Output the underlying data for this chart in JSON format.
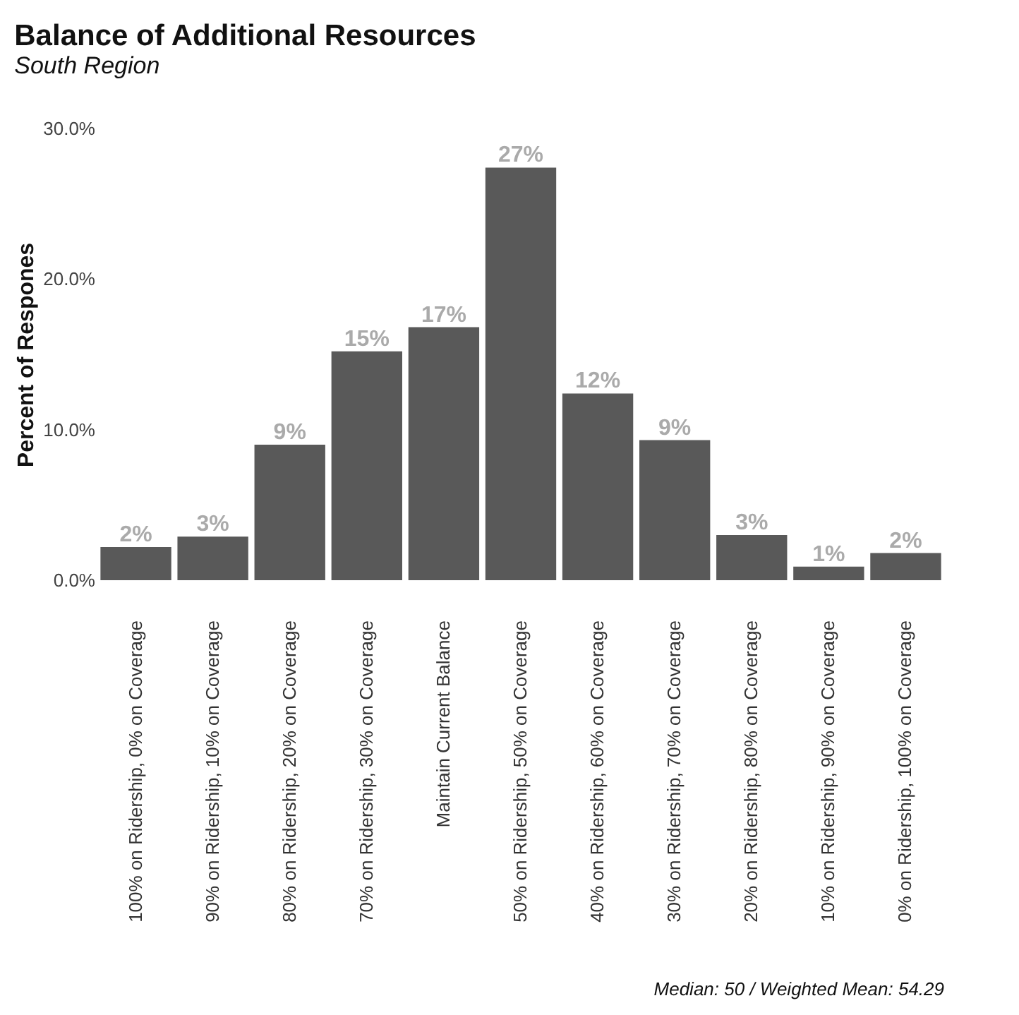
{
  "chart_data": {
    "type": "bar",
    "title": "Balance of Additional Resources",
    "subtitle": "South Region",
    "ylabel": "Percent of Respones",
    "categories": [
      "100% on Ridership, 0% on Coverage",
      "90% on Ridership, 10% on Coverage",
      "80% on Ridership, 20% on Coverage",
      "70% on Ridership, 30% on Coverage",
      "Maintain Current Balance",
      "50% on Ridership, 50% on Coverage",
      "40% on Ridership, 60% on Coverage",
      "30% on Ridership, 70% on Coverage",
      "20% on Ridership, 80% on Coverage",
      "10% on Ridership, 90% on Coverage",
      "0% on Ridership, 100% on Coverage"
    ],
    "values": [
      2.2,
      2.9,
      9.0,
      15.2,
      16.8,
      27.4,
      12.4,
      9.3,
      3.0,
      0.9,
      1.8
    ],
    "value_labels": [
      "2%",
      "3%",
      "9%",
      "15%",
      "17%",
      "27%",
      "12%",
      "9%",
      "3%",
      "1%",
      "2%"
    ],
    "color": "#595959",
    "ylim": [
      0,
      30
    ],
    "yticks": [
      {
        "value": 0,
        "label": "0.0%"
      },
      {
        "value": 10,
        "label": "10.0%"
      },
      {
        "value": 20,
        "label": "20.0%"
      },
      {
        "value": 30,
        "label": "30.0%"
      }
    ],
    "grid": false,
    "annotations": [
      "Median: 50 / Weighted Mean: 54.29"
    ]
  }
}
